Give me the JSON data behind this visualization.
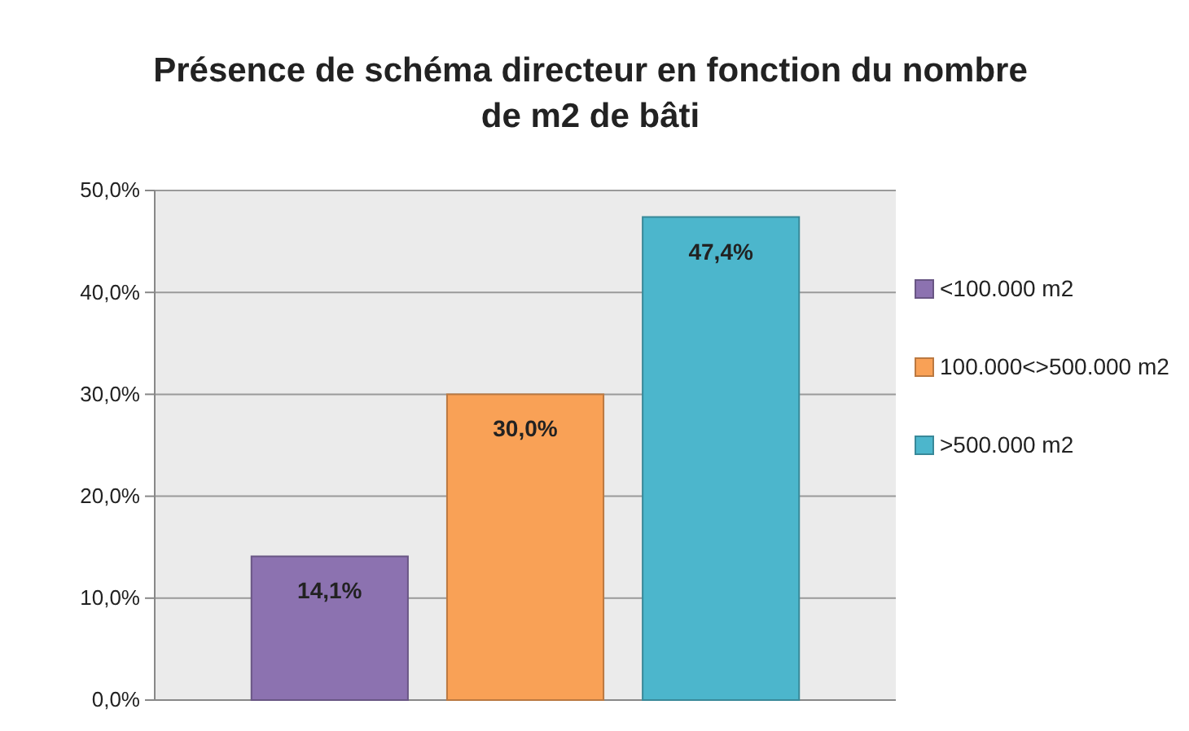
{
  "chart_data": {
    "type": "bar",
    "title": "Présence de schéma directeur en fonction du nombre de m2 de bâti",
    "categories": [
      null
    ],
    "series": [
      {
        "name": "<100.000 m2",
        "color": "#8c72b0",
        "values": [
          14.1
        ],
        "value_labels": [
          "14,1%"
        ]
      },
      {
        "name": "100.000<>500.000 m2",
        "color": "#f9a156",
        "values": [
          30.0
        ],
        "value_labels": [
          "30,0%"
        ]
      },
      {
        "name": ">500.000 m2",
        "color": "#4cb6cc",
        "values": [
          47.4
        ],
        "value_labels": [
          "47,4%"
        ]
      }
    ],
    "ylim": [
      0,
      50
    ],
    "yticks": [
      {
        "value": 0,
        "label": "0,0%"
      },
      {
        "value": 10,
        "label": "10,0%"
      },
      {
        "value": 20,
        "label": "20,0%"
      },
      {
        "value": 30,
        "label": "30,0%"
      },
      {
        "value": 40,
        "label": "40,0%"
      },
      {
        "value": 50,
        "label": "50,0%"
      }
    ],
    "grid": "y",
    "legend": "right"
  }
}
